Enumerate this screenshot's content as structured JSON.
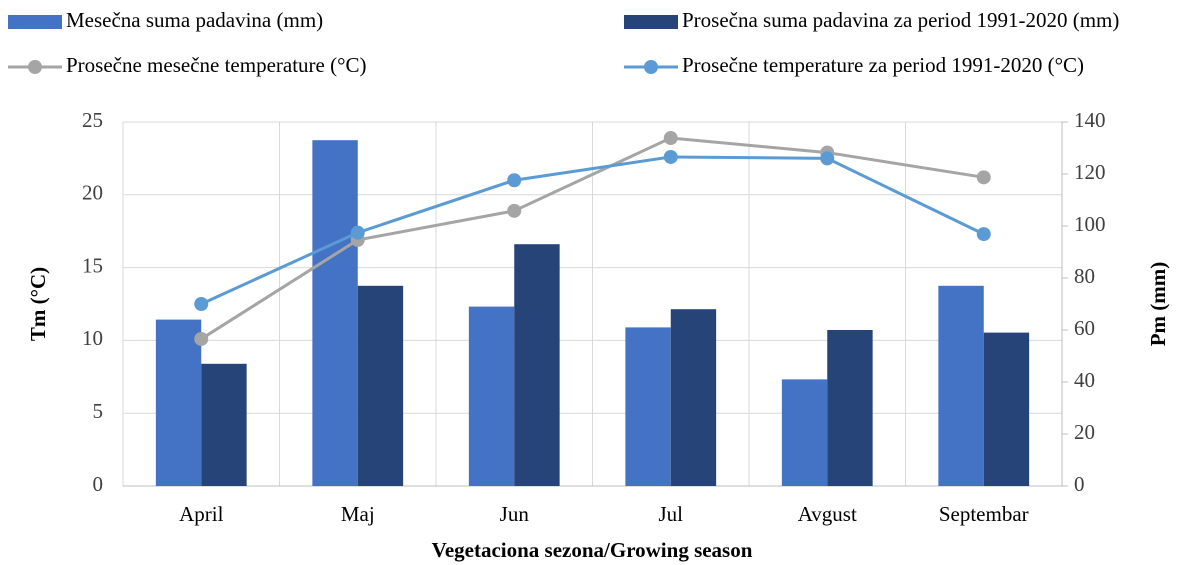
{
  "chart_data": {
    "type": "bar",
    "categories": [
      "April",
      "Maj",
      "Jun",
      "Jul",
      "Avgust",
      "Septembar"
    ],
    "x_label": "Vegetaciona sezona/Growing season",
    "y_label": "Tm (°C)",
    "y2_label": "Pm (mm)",
    "ylim": [
      0,
      25
    ],
    "yticks": [
      0,
      5,
      10,
      15,
      20,
      25
    ],
    "y2lim": [
      0,
      140
    ],
    "y2ticks": [
      0,
      20,
      40,
      60,
      80,
      100,
      120,
      140
    ],
    "grid": true,
    "series": [
      {
        "name": "Mesečna suma padavina (mm)",
        "type": "bar",
        "axis": "y2",
        "color": "#4472c4",
        "values": [
          64,
          133,
          69,
          61,
          41,
          77
        ]
      },
      {
        "name": "Prosečna suma padavina za period 1991-2020 (mm)",
        "type": "bar",
        "axis": "y2",
        "color": "#264478",
        "values": [
          47,
          77,
          93,
          68,
          60,
          59
        ]
      },
      {
        "name": "Prosečne mesečne temperature (°C)",
        "type": "line",
        "axis": "y",
        "color": "#a5a5a5",
        "values": [
          10.1,
          16.9,
          18.9,
          23.9,
          22.9,
          21.2
        ]
      },
      {
        "name": "Prosečne temperature za period 1991-2020 (°C)",
        "type": "line",
        "axis": "y",
        "color": "#5b9bd5",
        "values": [
          12.5,
          17.4,
          21.0,
          22.6,
          22.5,
          17.3
        ]
      }
    ]
  }
}
